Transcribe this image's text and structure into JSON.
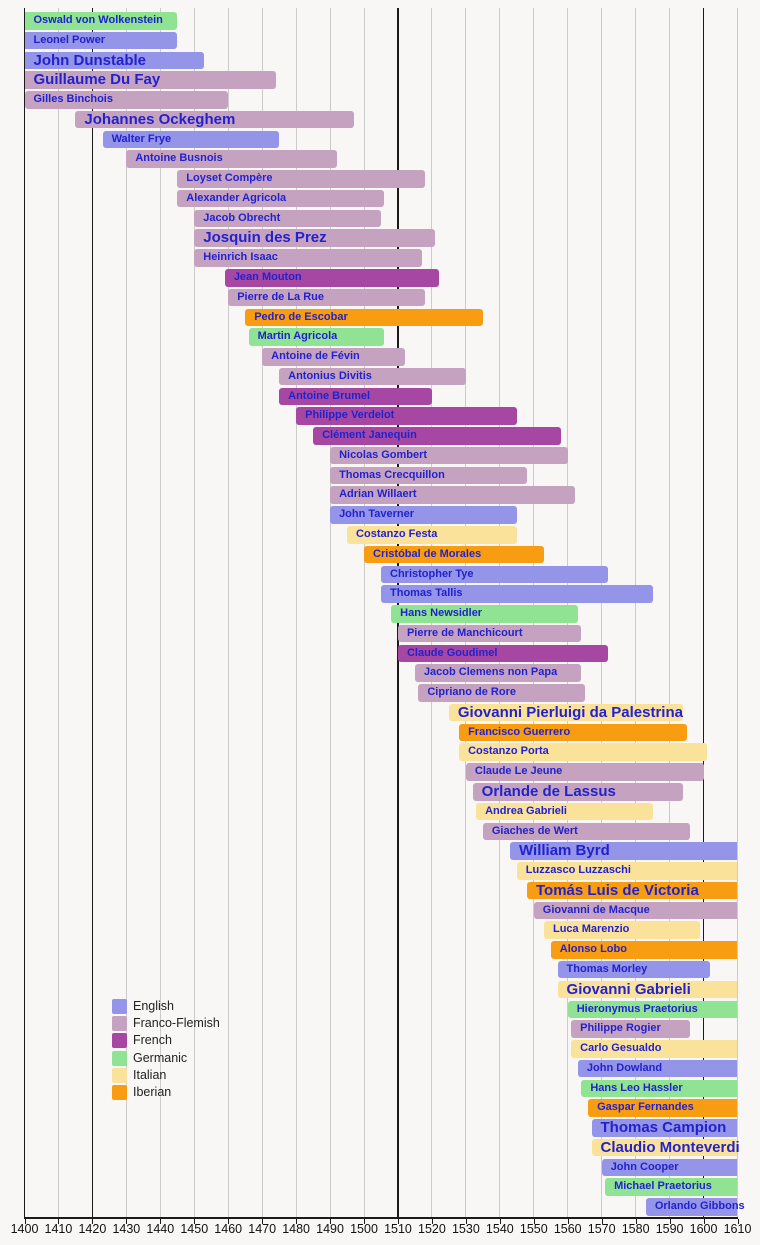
{
  "chart_data": {
    "type": "gantt-timeline",
    "description": "Timeline bars of Renaissance composers, colored by regional school, lifespans plotted against years 1400-1610",
    "x_axis": {
      "min": 1400,
      "max": 1610,
      "tick_interval": 10,
      "ticks": [
        1400,
        1410,
        1420,
        1430,
        1440,
        1450,
        1460,
        1470,
        1480,
        1490,
        1500,
        1510,
        1520,
        1530,
        1540,
        1550,
        1560,
        1570,
        1580,
        1590,
        1600,
        1610
      ]
    },
    "era_divider_years": [
      1420,
      1510,
      1600
    ],
    "grid": "on",
    "legend_position": "bottom-left",
    "colors": {
      "english": "#9494e8",
      "franco_flemish": "#c5a3c0",
      "french": "#a648a3",
      "germanic": "#8fe392",
      "italian": "#fbe29b",
      "iberian": "#f89d11"
    },
    "styles": {
      "bar_label_color": "#2222cc",
      "axis_color": "#1b1b1b",
      "grid_color": "#cbcbcb",
      "divider_color": "#1b1b1b",
      "background": "#f8f7f5"
    },
    "legend": [
      {
        "label": "English",
        "group": "english"
      },
      {
        "label": "Franco-Flemish",
        "group": "franco_flemish"
      },
      {
        "label": "French",
        "group": "french"
      },
      {
        "label": "Germanic",
        "group": "germanic"
      },
      {
        "label": "Italian",
        "group": "italian"
      },
      {
        "label": "Iberian",
        "group": "iberian"
      }
    ],
    "composers": [
      {
        "name": "Oswald von Wolkenstein",
        "group": "germanic",
        "start": 1400,
        "end": 1445,
        "clipped_start": true
      },
      {
        "name": "Leonel Power",
        "group": "english",
        "start": 1400,
        "end": 1445,
        "clipped_start": true
      },
      {
        "name": "John Dunstable",
        "group": "english",
        "start": 1400,
        "end": 1453,
        "clipped_start": true,
        "large": true
      },
      {
        "name": "Guillaume Du Fay",
        "group": "franco_flemish",
        "start": 1400,
        "end": 1474,
        "clipped_start": true,
        "large": true
      },
      {
        "name": "Gilles Binchois",
        "group": "franco_flemish",
        "start": 1400,
        "end": 1460
      },
      {
        "name": "Johannes Ockeghem",
        "group": "franco_flemish",
        "start": 1415,
        "end": 1497,
        "large": true
      },
      {
        "name": "Walter Frye",
        "group": "english",
        "start": 1423,
        "end": 1475
      },
      {
        "name": "Antoine Busnois",
        "group": "franco_flemish",
        "start": 1430,
        "end": 1492
      },
      {
        "name": "Loyset Compère",
        "group": "franco_flemish",
        "start": 1445,
        "end": 1518
      },
      {
        "name": "Alexander Agricola",
        "group": "franco_flemish",
        "start": 1445,
        "end": 1506
      },
      {
        "name": "Jacob Obrecht",
        "group": "franco_flemish",
        "start": 1450,
        "end": 1505
      },
      {
        "name": "Josquin des Prez",
        "group": "franco_flemish",
        "start": 1450,
        "end": 1521,
        "large": true
      },
      {
        "name": "Heinrich Isaac",
        "group": "franco_flemish",
        "start": 1450,
        "end": 1517
      },
      {
        "name": "Jean Mouton",
        "group": "french",
        "start": 1459,
        "end": 1522
      },
      {
        "name": "Pierre de La Rue",
        "group": "franco_flemish",
        "start": 1460,
        "end": 1518
      },
      {
        "name": "Pedro de Escobar",
        "group": "iberian",
        "start": 1465,
        "end": 1535
      },
      {
        "name": "Martin Agricola",
        "group": "germanic",
        "start": 1466,
        "end": 1506
      },
      {
        "name": "Antoine de Févin",
        "group": "franco_flemish",
        "start": 1470,
        "end": 1512
      },
      {
        "name": "Antonius Divitis",
        "group": "franco_flemish",
        "start": 1475,
        "end": 1530
      },
      {
        "name": "Antoine Brumel",
        "group": "french",
        "start": 1475,
        "end": 1520
      },
      {
        "name": "Philippe Verdelot",
        "group": "french",
        "start": 1480,
        "end": 1545
      },
      {
        "name": "Clément Janequin",
        "group": "french",
        "start": 1485,
        "end": 1558
      },
      {
        "name": "Nicolas Gombert",
        "group": "franco_flemish",
        "start": 1490,
        "end": 1560
      },
      {
        "name": "Thomas Crecquillon",
        "group": "franco_flemish",
        "start": 1490,
        "end": 1548
      },
      {
        "name": "Adrian Willaert",
        "group": "franco_flemish",
        "start": 1490,
        "end": 1562
      },
      {
        "name": "John Taverner",
        "group": "english",
        "start": 1490,
        "end": 1545
      },
      {
        "name": "Costanzo Festa",
        "group": "italian",
        "start": 1495,
        "end": 1545
      },
      {
        "name": "Cristóbal de Morales",
        "group": "iberian",
        "start": 1500,
        "end": 1553
      },
      {
        "name": "Christopher Tye",
        "group": "english",
        "start": 1505,
        "end": 1572
      },
      {
        "name": "Thomas Tallis",
        "group": "english",
        "start": 1505,
        "end": 1585
      },
      {
        "name": "Hans Newsidler",
        "group": "germanic",
        "start": 1508,
        "end": 1563
      },
      {
        "name": "Pierre de Manchicourt",
        "group": "franco_flemish",
        "start": 1510,
        "end": 1564
      },
      {
        "name": "Claude Goudimel",
        "group": "french",
        "start": 1510,
        "end": 1572
      },
      {
        "name": "Jacob Clemens non Papa",
        "group": "franco_flemish",
        "start": 1515,
        "end": 1564
      },
      {
        "name": "Cipriano de Rore",
        "group": "franco_flemish",
        "start": 1516,
        "end": 1565
      },
      {
        "name": "Giovanni Pierluigi da Palestrina",
        "group": "italian",
        "start": 1525,
        "end": 1594,
        "large": true
      },
      {
        "name": "Francisco Guerrero",
        "group": "iberian",
        "start": 1528,
        "end": 1595
      },
      {
        "name": "Costanzo Porta",
        "group": "italian",
        "start": 1528,
        "end": 1601
      },
      {
        "name": "Claude Le Jeune",
        "group": "franco_flemish",
        "start": 1530,
        "end": 1600
      },
      {
        "name": "Orlande de Lassus",
        "group": "franco_flemish",
        "start": 1532,
        "end": 1594,
        "large": true
      },
      {
        "name": "Andrea Gabrieli",
        "group": "italian",
        "start": 1533,
        "end": 1585
      },
      {
        "name": "Giaches de Wert",
        "group": "franco_flemish",
        "start": 1535,
        "end": 1596
      },
      {
        "name": "William Byrd",
        "group": "english",
        "start": 1543,
        "end": 1610,
        "clipped_end": true,
        "large": true
      },
      {
        "name": "Luzzasco Luzzaschi",
        "group": "italian",
        "start": 1545,
        "end": 1610,
        "clipped_end": true
      },
      {
        "name": "Tomás Luis de Victoria",
        "group": "iberian",
        "start": 1548,
        "end": 1610,
        "clipped_end": true,
        "large": true
      },
      {
        "name": "Giovanni de Macque",
        "group": "franco_flemish",
        "start": 1550,
        "end": 1610,
        "clipped_end": true
      },
      {
        "name": "Luca Marenzio",
        "group": "italian",
        "start": 1553,
        "end": 1599
      },
      {
        "name": "Alonso Lobo",
        "group": "iberian",
        "start": 1555,
        "end": 1610,
        "clipped_end": true
      },
      {
        "name": "Thomas Morley",
        "group": "english",
        "start": 1557,
        "end": 1602
      },
      {
        "name": "Giovanni Gabrieli",
        "group": "italian",
        "start": 1557,
        "end": 1610,
        "clipped_end": true,
        "large": true
      },
      {
        "name": "Hieronymus Praetorius",
        "group": "germanic",
        "start": 1560,
        "end": 1610,
        "clipped_end": true
      },
      {
        "name": "Philippe Rogier",
        "group": "franco_flemish",
        "start": 1561,
        "end": 1596
      },
      {
        "name": "Carlo Gesualdo",
        "group": "italian",
        "start": 1561,
        "end": 1610,
        "clipped_end": true
      },
      {
        "name": "John Dowland",
        "group": "english",
        "start": 1563,
        "end": 1610,
        "clipped_end": true
      },
      {
        "name": "Hans Leo Hassler",
        "group": "germanic",
        "start": 1564,
        "end": 1610,
        "clipped_end": true
      },
      {
        "name": "Gaspar Fernandes",
        "group": "iberian",
        "start": 1566,
        "end": 1610,
        "clipped_end": true
      },
      {
        "name": "Thomas Campion",
        "group": "english",
        "start": 1567,
        "end": 1610,
        "clipped_end": true,
        "large": true
      },
      {
        "name": "Claudio Monteverdi",
        "group": "italian",
        "start": 1567,
        "end": 1610,
        "clipped_end": true,
        "large": true
      },
      {
        "name": "John Cooper",
        "group": "english",
        "start": 1570,
        "end": 1610,
        "clipped_end": true
      },
      {
        "name": "Michael Praetorius",
        "group": "germanic",
        "start": 1571,
        "end": 1610,
        "clipped_end": true
      },
      {
        "name": "Orlando Gibbons",
        "group": "english",
        "start": 1583,
        "end": 1610,
        "clipped_end": true
      }
    ]
  }
}
